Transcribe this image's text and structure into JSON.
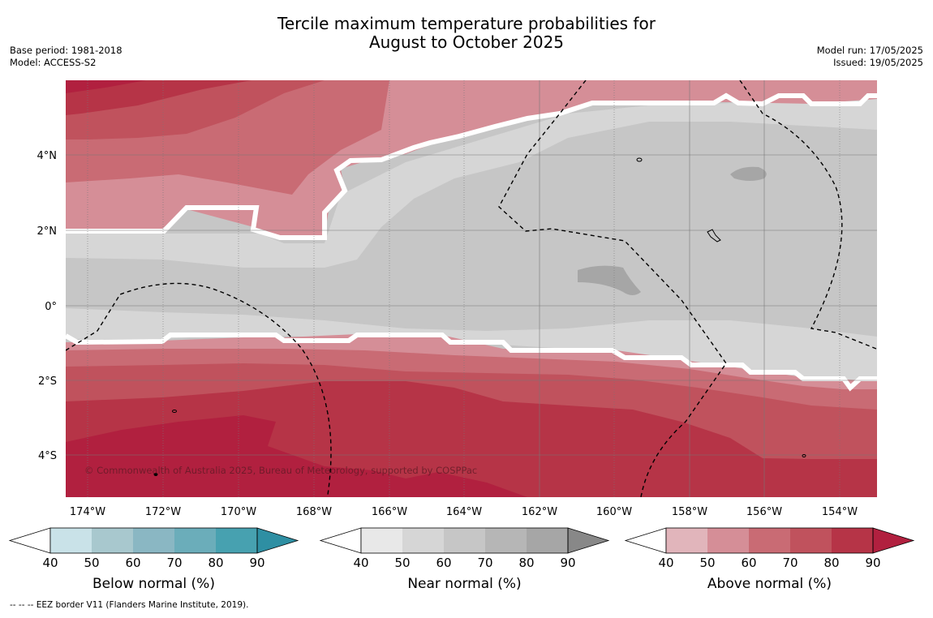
{
  "title": {
    "line1": "Tercile maximum temperature probabilities for",
    "line2": "August to October 2025"
  },
  "meta": {
    "base_period": "Base period: 1981-2018",
    "model": "Model: ACCESS-S2",
    "model_run": "Model run: 17/05/2025",
    "issued": "Issued: 19/05/2025"
  },
  "map": {
    "lat_labels": [
      "4°N",
      "2°N",
      "0°",
      "2°S",
      "4°S"
    ],
    "lon_labels": [
      "174°W",
      "172°W",
      "170°W",
      "168°W",
      "166°W",
      "164°W",
      "162°W",
      "160°W",
      "158°W",
      "156°W",
      "154°W"
    ],
    "copyright": "© Commonwealth of Australia 2025, Bureau of Meteorology, supported by COSPPac"
  },
  "colorbars": [
    {
      "label": "Below normal (%)",
      "ticks": [
        "40",
        "50",
        "60",
        "70",
        "80",
        "90"
      ],
      "colors": [
        "#ffffff",
        "#c9e2e8",
        "#a8c8ce",
        "#8ab7c3",
        "#6badba",
        "#47a1b0",
        "#2e8fa3"
      ]
    },
    {
      "label": "Near normal (%)",
      "ticks": [
        "40",
        "50",
        "60",
        "70",
        "80",
        "90"
      ],
      "colors": [
        "#ffffff",
        "#e8e8e8",
        "#d6d6d6",
        "#c6c6c6",
        "#b6b6b6",
        "#a6a6a6",
        "#888888"
      ]
    },
    {
      "label": "Above normal (%)",
      "ticks": [
        "40",
        "50",
        "60",
        "70",
        "80",
        "90"
      ],
      "colors": [
        "#ffffff",
        "#e1b5bb",
        "#d58e97",
        "#c96b74",
        "#c0525d",
        "#b63447",
        "#b1203f"
      ]
    }
  ],
  "footnote": "--  --  -- EEZ border V11 (Flanders Marine Institute, 2019)."
}
